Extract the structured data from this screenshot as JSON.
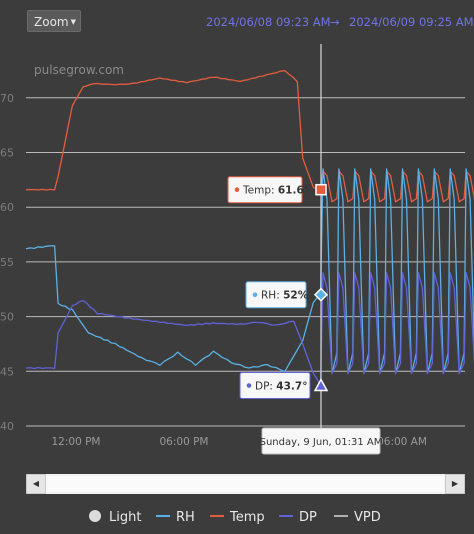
{
  "toolbar": {
    "zoom_label": "Zoom"
  },
  "date_range": {
    "start": "2024/06/08 09:23 AM",
    "separator": "→",
    "end": "2024/06/09 09:25 AM"
  },
  "colors": {
    "temp": "#e35d3e",
    "rh": "#5bb0e5",
    "dp": "#5f63d6",
    "vpd": "#b0b0b0",
    "light": "#dcdcdc",
    "grid": "#c9c9c9",
    "background": "#3c3c3c"
  },
  "chart_data": {
    "type": "line",
    "watermark": "pulsegrow.com",
    "x_axis": {
      "ticks": [
        "12:00 PM",
        "06:00 PM",
        "06:00 AM"
      ]
    },
    "y_axis": {
      "ticks": [
        "70",
        "65",
        "60",
        "55",
        "50",
        "45",
        "40"
      ],
      "ylim": [
        40,
        72
      ]
    },
    "grid": true,
    "legend_position": "bottom",
    "legend": [
      {
        "name": "Light",
        "symbol": "dot"
      },
      {
        "name": "RH",
        "symbol": "line"
      },
      {
        "name": "Temp",
        "symbol": "line"
      },
      {
        "name": "DP",
        "symbol": "line"
      },
      {
        "name": "VPD",
        "symbol": "line"
      }
    ],
    "series": [
      {
        "name": "Temp",
        "x_hours_from_start": [
          0,
          1.6,
          1.8,
          2.6,
          3.2,
          3.8,
          5,
          6,
          7.5,
          9,
          10.5,
          12,
          13.5,
          14.5,
          15.2,
          15.5,
          16.1,
          16.5
        ],
        "values": [
          61.6,
          61.6,
          62.8,
          69.3,
          71.0,
          71.3,
          71.2,
          71.3,
          71.8,
          71.4,
          71.9,
          71.5,
          72.1,
          72.5,
          71.5,
          64.5,
          61.8,
          61.6
        ]
      },
      {
        "name": "RH",
        "x_hours_from_start": [
          0,
          1.6,
          1.8,
          2.6,
          3.5,
          5,
          6.5,
          7.5,
          8.5,
          9.5,
          10.5,
          11.5,
          12.5,
          13.5,
          14.5,
          15.5,
          16.1,
          16.5
        ],
        "values": [
          56.2,
          56.5,
          51.2,
          50.6,
          48.5,
          47.5,
          46.2,
          45.6,
          46.7,
          45.6,
          46.8,
          45.8,
          45.3,
          45.6,
          45.0,
          47.8,
          51.3,
          52.0
        ]
      },
      {
        "name": "DP",
        "x_hours_from_start": [
          0,
          1.6,
          1.8,
          2.6,
          3.2,
          4,
          6,
          7.5,
          9,
          10.5,
          12,
          13,
          14,
          15,
          15.5,
          16.1,
          16.5
        ],
        "values": [
          45.3,
          45.3,
          48.5,
          51.0,
          51.5,
          50.3,
          49.8,
          49.5,
          49.2,
          49.4,
          49.3,
          49.5,
          49.2,
          49.6,
          47.5,
          44.8,
          43.7
        ]
      }
    ],
    "cycling_after_crosshair": {
      "Temp": {
        "low": 60.5,
        "high": 63.3
      },
      "RH": {
        "low": 44.8,
        "high": 63.5
      },
      "DP": {
        "low": 44.8,
        "high": 54.0
      }
    },
    "tooltips": [
      {
        "series": "Temp",
        "label": "Temp:",
        "value": "61.6°"
      },
      {
        "series": "RH",
        "label": "RH:",
        "value": "52%"
      },
      {
        "series": "DP",
        "label": "DP:",
        "value": "43.7°"
      }
    ],
    "crosshair_label": "Sunday, 9 Jun, 01:31 AM"
  }
}
